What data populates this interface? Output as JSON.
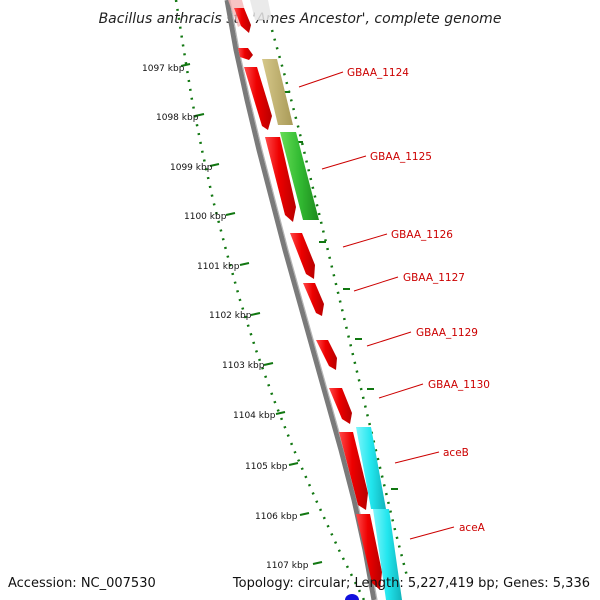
{
  "title": "Bacillus anthracis str. 'Ames Ancestor', complete genome",
  "footer": {
    "accession": "Accession: NC_007530",
    "topology": "Topology: circular; Length: 5,227,419 bp; Genes: 5,336"
  },
  "kbp_labels": [
    "1097 kbp",
    "1098 kbp",
    "1099 kbp",
    "1100 kbp",
    "1101 kbp",
    "1102 kbp",
    "1103 kbp",
    "1104 kbp",
    "1105 kbp",
    "1106 kbp",
    "1107 kbp"
  ],
  "genes": [
    {
      "name": "GBAA_1124"
    },
    {
      "name": "GBAA_1125"
    },
    {
      "name": "GBAA_1126"
    },
    {
      "name": "GBAA_1127"
    },
    {
      "name": "GBAA_1129"
    },
    {
      "name": "GBAA_1130"
    },
    {
      "name": "aceB"
    },
    {
      "name": "aceA"
    }
  ],
  "colors": {
    "gene_red": "#ee0000",
    "gene_khaki": "#c4b46c",
    "gene_green": "#33bb33",
    "gene_cyan": "#22e6ee",
    "backbone": "#777777",
    "ruler": "#117711",
    "label_red": "#cc0000",
    "marker_blue": "#1111dd"
  }
}
